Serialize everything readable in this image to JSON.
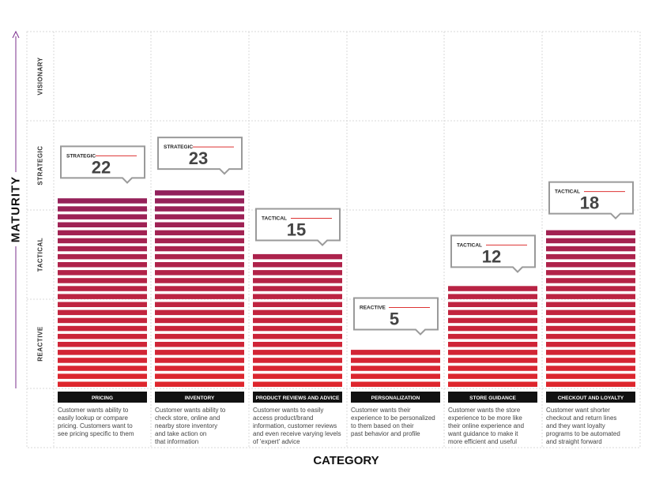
{
  "chart_data": {
    "type": "bar",
    "title": "",
    "xlabel": "CATEGORY",
    "ylabel": "MATURITY",
    "y_levels": [
      "REACTIVE",
      "TACTICAL",
      "STRATEGIC",
      "VISIONARY"
    ],
    "ylim": [
      0,
      40
    ],
    "grid": true,
    "categories": [
      "PRICING",
      "INVENTORY",
      "PRODUCT REVIEWS AND ADVICE",
      "PERSONALIZATION",
      "STORE GUIDANCE",
      "CHECKOUT AND LOYALTY"
    ],
    "values": [
      22,
      23,
      15,
      5,
      12,
      18
    ],
    "maturity_labels": [
      "STRATEGIC",
      "STRATEGIC",
      "TACTICAL",
      "REACTIVE",
      "TACTICAL",
      "TACTICAL"
    ],
    "descriptions": [
      [
        "Customer wants ability to",
        "easily lookup or compare",
        "pricing. Customers want to",
        "see pricing specific to them"
      ],
      [
        "Customer wants ability to",
        "check store, online and",
        "nearby store inventory",
        "and take action on",
        "that information"
      ],
      [
        "Customer wants to easily",
        "access product/brand",
        "information, customer reviews",
        "and even receive varying levels",
        "of 'expert' advice"
      ],
      [
        "Customer wants their",
        "experience to be personalized",
        "to them based on their",
        "past behavior and profile"
      ],
      [
        "Customer wants the store",
        "experience to be more like",
        "their online experience and",
        "want guidance to make it",
        "more efficient and useful"
      ],
      [
        "Customer want shorter",
        "checkout and return lines",
        "and they want loyalty",
        "programs to be automated",
        "and straight forward"
      ]
    ],
    "colors": {
      "bottom": "#e1262b",
      "top": "#8c2060",
      "axis": "#7b2f8e",
      "label_bg": "#111111"
    }
  }
}
